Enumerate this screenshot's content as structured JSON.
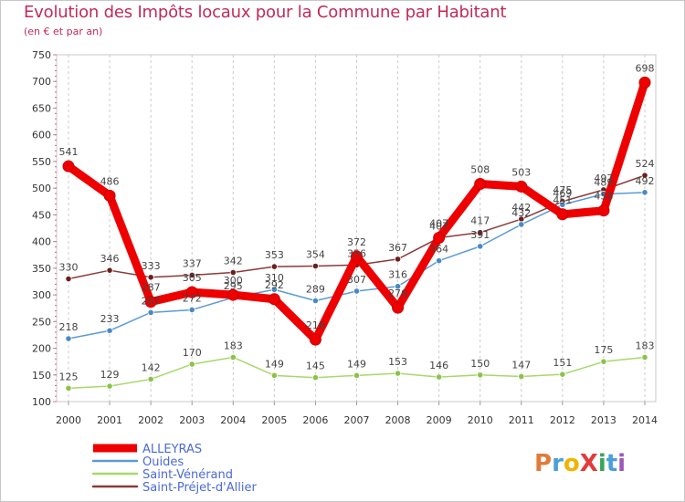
{
  "header": {
    "title": "Evolution des Impôts locaux pour la Commune par Habitant",
    "subtitle": "(en € et par an)"
  },
  "logo": {
    "text": "ProXiti"
  },
  "chart_data": {
    "type": "line",
    "title": "Evolution des Impôts locaux pour la Commune par Habitant",
    "subtitle": "(en € et par an)",
    "x": [
      "2000",
      "2001",
      "2002",
      "2003",
      "2004",
      "2005",
      "2006",
      "2007",
      "2008",
      "2009",
      "2010",
      "2011",
      "2012",
      "2013",
      "2014"
    ],
    "ylim": [
      100,
      750
    ],
    "yticks": [
      100,
      150,
      200,
      250,
      300,
      350,
      400,
      450,
      500,
      550,
      600,
      650,
      700,
      750
    ],
    "grid": "vertical dashed",
    "legend_position": "bottom-left",
    "series": [
      {
        "name": "ALLEYRAS",
        "color": "#ee0000",
        "marker": "#ee0000",
        "values": [
          541,
          486,
          287,
          305,
          300,
          292,
          216,
          372,
          276,
          407,
          508,
          503,
          451,
          458,
          698
        ],
        "labels": [
          "541",
          "486",
          "287",
          "305",
          "300",
          "292",
          "216",
          "372",
          "276",
          "407",
          "508",
          "503",
          "451",
          "458",
          "698"
        ]
      },
      {
        "name": "Ouides",
        "color": "#5b9bd5",
        "marker": "#4a8ac4",
        "values": [
          218,
          233,
          267,
          272,
          295,
          310,
          289,
          307,
          316,
          364,
          391,
          432,
          469,
          489,
          492
        ],
        "labels": [
          "218",
          "233",
          "267",
          "272",
          "295",
          "310",
          "289",
          "307",
          "316",
          "364",
          "391",
          "432",
          "469",
          "489",
          "492"
        ]
      },
      {
        "name": "Saint-Vénérand",
        "color": "#a6d96a",
        "marker": "#8bc34a",
        "values": [
          125,
          129,
          142,
          170,
          183,
          149,
          145,
          149,
          153,
          146,
          150,
          147,
          151,
          175,
          183
        ],
        "labels": [
          "125",
          "129",
          "142",
          "170",
          "183",
          "149",
          "145",
          "149",
          "153",
          "146",
          "150",
          "147",
          "151",
          "175",
          "183"
        ]
      },
      {
        "name": "Saint-Préjet-d'Allier",
        "color": "#8b3a3a",
        "marker": "#6b1f1f",
        "values": [
          330,
          346,
          333,
          337,
          342,
          353,
          354,
          356,
          367,
          407,
          417,
          442,
          475,
          497,
          524
        ],
        "labels": [
          "330",
          "346",
          "333",
          "337",
          "342",
          "353",
          "354",
          "356",
          "367",
          "407",
          "417",
          "442",
          "475",
          "497",
          "524"
        ]
      }
    ]
  }
}
